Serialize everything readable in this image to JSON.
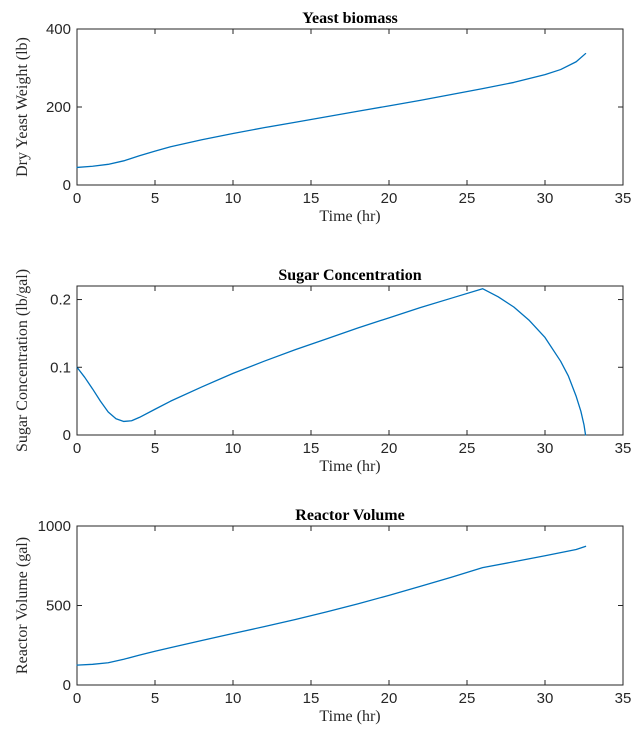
{
  "chart_data": [
    {
      "type": "line",
      "title": "Yeast biomass",
      "xlabel": "Time (hr)",
      "ylabel": "Dry Yeast Weight (lb)",
      "xlim": [
        0,
        35
      ],
      "ylim": [
        0,
        400
      ],
      "xticks": [
        0,
        5,
        10,
        15,
        20,
        25,
        30,
        35
      ],
      "yticks": [
        0,
        200,
        400
      ],
      "grid": false,
      "color": "#0072BD",
      "series": [
        {
          "x": [
            0,
            1,
            2,
            3,
            4,
            5,
            6,
            8,
            10,
            12,
            14,
            16,
            18,
            20,
            22,
            24,
            26,
            28,
            30,
            31,
            32,
            32.6
          ],
          "y": [
            45,
            48,
            53,
            62,
            75,
            87,
            98,
            116,
            132,
            147,
            161,
            175,
            189,
            203,
            217,
            232,
            247,
            263,
            283,
            296,
            316,
            337
          ]
        }
      ]
    },
    {
      "type": "line",
      "title": "Sugar Concentration",
      "xlabel": "Time (hr)",
      "ylabel": "Sugar Concentration (lb/gal)",
      "xlim": [
        0,
        35
      ],
      "ylim": [
        0,
        0.22
      ],
      "xticks": [
        0,
        5,
        10,
        15,
        20,
        25,
        30,
        35
      ],
      "yticks": [
        0,
        0.1,
        0.2
      ],
      "grid": false,
      "color": "#0072BD",
      "series": [
        {
          "x": [
            0,
            0.5,
            1,
            1.5,
            2,
            2.5,
            3,
            3.5,
            4,
            5,
            6,
            8,
            10,
            12,
            14,
            16,
            18,
            20,
            22,
            24,
            26,
            27,
            28,
            29,
            30,
            31,
            31.5,
            32,
            32.3,
            32.5,
            32.6
          ],
          "y": [
            0.1,
            0.085,
            0.068,
            0.05,
            0.034,
            0.024,
            0.02,
            0.021,
            0.026,
            0.038,
            0.05,
            0.071,
            0.091,
            0.109,
            0.126,
            0.142,
            0.158,
            0.173,
            0.188,
            0.202,
            0.216,
            0.204,
            0.189,
            0.169,
            0.144,
            0.109,
            0.087,
            0.057,
            0.035,
            0.015,
            0
          ]
        }
      ]
    },
    {
      "type": "line",
      "title": "Reactor Volume",
      "xlabel": "Time (hr)",
      "ylabel": "Reactor Volume (gal)",
      "xlim": [
        0,
        35
      ],
      "ylim": [
        0,
        1000
      ],
      "xticks": [
        0,
        5,
        10,
        15,
        20,
        25,
        30,
        35
      ],
      "yticks": [
        0,
        500,
        1000
      ],
      "grid": false,
      "color": "#0072BD",
      "series": [
        {
          "x": [
            0,
            1,
            2,
            3,
            4,
            5,
            6,
            8,
            10,
            12,
            14,
            16,
            18,
            20,
            22,
            24,
            26,
            28,
            30,
            32,
            32.6
          ],
          "y": [
            125,
            130,
            140,
            162,
            188,
            212,
            235,
            280,
            324,
            367,
            412,
            460,
            510,
            564,
            620,
            678,
            738,
            775,
            813,
            852,
            872
          ]
        }
      ]
    }
  ]
}
